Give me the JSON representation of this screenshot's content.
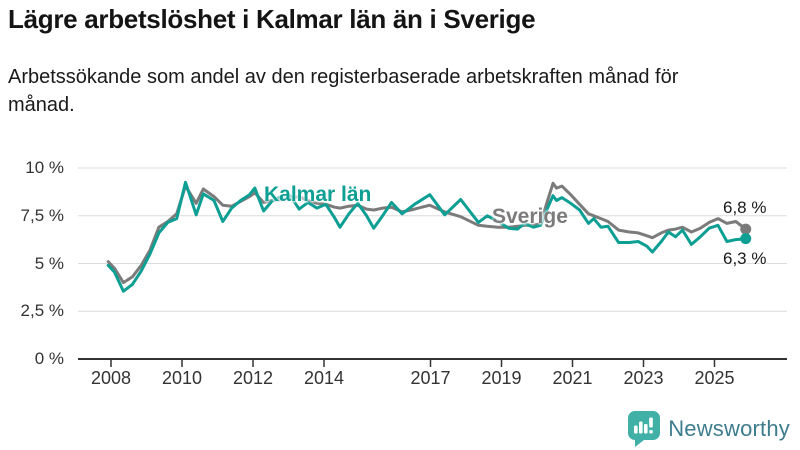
{
  "header": {
    "title": "Lägre arbetslöshet i Kalmar län än i Sverige",
    "subtitle": "Arbetssökande som andel av den registerbaserade arbetskraften månad för månad."
  },
  "chart_data": {
    "type": "line",
    "title": "Lägre arbetslöshet i Kalmar län än i Sverige",
    "subtitle": "Arbetssökande som andel av den registerbaserade arbetskraften månad för månad.",
    "xlabel": "",
    "ylabel": "",
    "x_unit": "year (monthly observations)",
    "xlim": [
      2007.75,
      2026.2
    ],
    "ylim": [
      0,
      10
    ],
    "grid": "horizontal",
    "y_ticks": [
      {
        "value": 0,
        "label": "0 %"
      },
      {
        "value": 2.5,
        "label": "2,5 %"
      },
      {
        "value": 5,
        "label": "5 %"
      },
      {
        "value": 7.5,
        "label": "7,5 %"
      },
      {
        "value": 10,
        "label": "10 %"
      }
    ],
    "x_ticks": [
      {
        "value": 2008,
        "label": "2008"
      },
      {
        "value": 2010,
        "label": "2010"
      },
      {
        "value": 2012,
        "label": "2012"
      },
      {
        "value": 2014,
        "label": "2014"
      },
      {
        "value": 2017,
        "label": "2017"
      },
      {
        "value": 2019,
        "label": "2019"
      },
      {
        "value": 2021,
        "label": "2021"
      },
      {
        "value": 2023,
        "label": "2023"
      },
      {
        "value": 2025,
        "label": "2025"
      }
    ],
    "x": [
      2007.92,
      2008.1,
      2008.35,
      2008.6,
      2008.85,
      2009.1,
      2009.35,
      2009.6,
      2009.85,
      2010.1,
      2010.4,
      2010.6,
      2010.9,
      2011.15,
      2011.4,
      2011.65,
      2011.9,
      2012.05,
      2012.3,
      2012.55,
      2012.8,
      2013.05,
      2013.3,
      2013.55,
      2013.8,
      2014.05,
      2014.3,
      2014.45,
      2014.7,
      2014.95,
      2015.2,
      2015.4,
      2015.65,
      2015.9,
      2016.2,
      2016.55,
      2016.98,
      2017.4,
      2017.85,
      2018.35,
      2018.6,
      2018.9,
      2019.2,
      2019.45,
      2019.65,
      2019.9,
      2020.1,
      2020.3,
      2020.45,
      2020.55,
      2020.7,
      2020.95,
      2021.2,
      2021.45,
      2021.6,
      2021.8,
      2022.0,
      2022.3,
      2022.6,
      2022.85,
      2023.1,
      2023.25,
      2023.5,
      2023.7,
      2023.9,
      2024.1,
      2024.35,
      2024.6,
      2024.85,
      2025.1,
      2025.35,
      2025.6,
      2025.88
    ],
    "series": [
      {
        "name": "Sverige",
        "color": "#7b7b7b",
        "end_value_label": "6,8 %",
        "values": [
          5.1,
          4.75,
          4.0,
          4.3,
          4.9,
          5.7,
          6.9,
          7.2,
          7.6,
          9.05,
          8.15,
          8.9,
          8.5,
          8.05,
          8.0,
          8.25,
          8.5,
          8.7,
          8.2,
          8.3,
          8.35,
          8.45,
          8.5,
          8.3,
          8.15,
          8.1,
          7.95,
          7.9,
          8.0,
          8.05,
          7.85,
          7.8,
          7.9,
          7.95,
          7.7,
          7.85,
          8.05,
          7.7,
          7.45,
          7.0,
          6.95,
          6.9,
          6.9,
          6.95,
          7.0,
          7.0,
          7.1,
          8.3,
          9.2,
          8.95,
          9.05,
          8.6,
          8.1,
          7.6,
          7.5,
          7.35,
          7.2,
          6.75,
          6.65,
          6.6,
          6.45,
          6.35,
          6.6,
          6.75,
          6.8,
          6.9,
          6.65,
          6.85,
          7.15,
          7.35,
          7.1,
          7.2,
          6.8
        ]
      },
      {
        "name": "Kalmar län",
        "color": "#0d9f94",
        "end_value_label": "6,3 %",
        "values": [
          4.9,
          4.55,
          3.55,
          3.9,
          4.6,
          5.5,
          6.6,
          7.15,
          7.35,
          9.25,
          7.55,
          8.65,
          8.3,
          7.2,
          7.9,
          8.3,
          8.6,
          8.95,
          7.75,
          8.3,
          8.5,
          8.55,
          7.85,
          8.2,
          7.9,
          8.1,
          7.4,
          6.9,
          7.6,
          8.15,
          7.5,
          6.85,
          7.5,
          8.2,
          7.6,
          8.1,
          8.6,
          7.55,
          8.35,
          7.15,
          7.5,
          7.2,
          6.85,
          6.8,
          7.1,
          6.9,
          7.0,
          7.9,
          8.55,
          8.3,
          8.45,
          8.15,
          7.8,
          7.1,
          7.35,
          6.9,
          6.95,
          6.1,
          6.1,
          6.15,
          5.9,
          5.6,
          6.15,
          6.65,
          6.4,
          6.75,
          6.0,
          6.4,
          6.85,
          7.0,
          6.15,
          6.25,
          6.3
        ]
      }
    ],
    "legend_position": "inline-labels-on-lines"
  },
  "colors": {
    "kalmar": "#0d9f94",
    "sverige": "#7b7b7b",
    "gridline": "#dcdcdc",
    "axis": "#333333",
    "logo_teal": "#41b0a6",
    "logo_text": "#3e7d8e"
  },
  "branding": {
    "logo_text": "Newsworthy"
  }
}
